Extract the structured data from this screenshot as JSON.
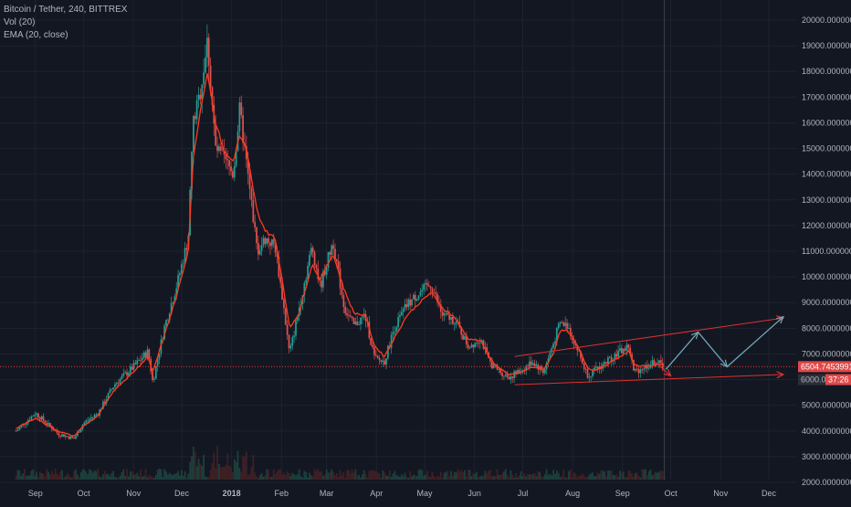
{
  "header": {
    "symbol_line": "Bitcoin / Tether, 240, BITTREX",
    "volume_line": "Vol (20)",
    "ema_line": "EMA (20, close)"
  },
  "colors": {
    "background": "#131722",
    "grid": "#1e2230",
    "axis_text": "#b2b5be",
    "candle_up": "#26a69a",
    "candle_down": "#ef5350",
    "ema": "#ff3b1f",
    "price_line": "#e04040",
    "price_tag": "#e04848",
    "channel": "#e03030",
    "projection": "#6fa8b8"
  },
  "chart_data": {
    "type": "line",
    "series": [
      {
        "name": "Bitcoin / Tether",
        "type": "price",
        "color": "#b2b5be"
      },
      {
        "name": "EMA (20, close)",
        "type": "ema",
        "color": "#ff3b1f"
      }
    ],
    "x": [
      "2017-08-20",
      "2017-09-01",
      "2017-09-15",
      "2017-09-25",
      "2017-10-01",
      "2017-10-10",
      "2017-10-20",
      "2017-11-01",
      "2017-11-10",
      "2017-11-13",
      "2017-11-20",
      "2017-11-28",
      "2017-12-05",
      "2017-12-08",
      "2017-12-12",
      "2017-12-17",
      "2017-12-22",
      "2017-12-28",
      "2018-01-02",
      "2018-01-06",
      "2018-01-10",
      "2018-01-17",
      "2018-01-22",
      "2018-01-28",
      "2018-02-02",
      "2018-02-06",
      "2018-02-12",
      "2018-02-20",
      "2018-02-25",
      "2018-03-05",
      "2018-03-12",
      "2018-03-18",
      "2018-03-25",
      "2018-03-31",
      "2018-04-06",
      "2018-04-12",
      "2018-04-20",
      "2018-04-28",
      "2018-05-05",
      "2018-05-12",
      "2018-05-20",
      "2018-05-28",
      "2018-06-05",
      "2018-06-10",
      "2018-06-15",
      "2018-06-22",
      "2018-06-29",
      "2018-07-07",
      "2018-07-14",
      "2018-07-20",
      "2018-07-24",
      "2018-07-29",
      "2018-08-05",
      "2018-08-10",
      "2018-08-14",
      "2018-08-20",
      "2018-08-28",
      "2018-09-05",
      "2018-09-08",
      "2018-09-15",
      "2018-09-22",
      "2018-09-27"
    ],
    "close": [
      4000,
      4700,
      3900,
      3700,
      4300,
      4700,
      5800,
      6500,
      7100,
      5900,
      8000,
      9700,
      11500,
      16000,
      17000,
      19200,
      15000,
      14500,
      14000,
      16500,
      14500,
      11000,
      11500,
      11200,
      9000,
      7000,
      8800,
      11200,
      9600,
      11400,
      8800,
      8100,
      8500,
      6800,
      6700,
      8000,
      8900,
      9400,
      9700,
      8500,
      8300,
      7300,
      7600,
      6700,
      6400,
      6100,
      6300,
      6700,
      6300,
      7400,
      8200,
      8100,
      7000,
      6200,
      6300,
      6600,
      7000,
      7300,
      6300,
      6500,
      6700,
      6500
    ],
    "ema_values": [
      4100,
      4500,
      4000,
      3800,
      4200,
      4600,
      5600,
      6300,
      6900,
      6300,
      7700,
      9300,
      11000,
      14500,
      16300,
      18000,
      16000,
      14800,
      14500,
      15500,
      15000,
      12500,
      11800,
      11500,
      9700,
      8000,
      8600,
      10500,
      9900,
      10900,
      9500,
      8600,
      8500,
      7300,
      6900,
      7600,
      8500,
      9000,
      9400,
      8800,
      8400,
      7600,
      7500,
      6900,
      6500,
      6200,
      6250,
      6500,
      6400,
      7000,
      7900,
      7900,
      7200,
      6500,
      6350,
      6500,
      6800,
      7100,
      6600,
      6500,
      6600,
      6550
    ],
    "ylim": [
      2000,
      20000
    ],
    "y_ticks": [
      "20000.00000000",
      "19000.00000000",
      "18000.00000000",
      "17000.00000000",
      "16000.00000000",
      "15000.00000000",
      "14000.00000000",
      "13000.00000000",
      "12000.00000000",
      "11000.00000000",
      "10000.00000000",
      "9000.00000000",
      "8000.00000000",
      "7000.00000000",
      "6000.00000000",
      "5000.00000000",
      "4000.00000000",
      "3000.00000000",
      "2000.00000000"
    ],
    "y_tick_values": [
      20000,
      19000,
      18000,
      17000,
      16000,
      15000,
      14000,
      13000,
      12000,
      11000,
      10000,
      9000,
      8000,
      7000,
      6000,
      5000,
      4000,
      3000,
      2000
    ],
    "x_ticks": [
      {
        "label": "Sep",
        "date": "2017-09-01"
      },
      {
        "label": "Oct",
        "date": "2017-10-01"
      },
      {
        "label": "Nov",
        "date": "2017-11-01"
      },
      {
        "label": "Dec",
        "date": "2017-12-01"
      },
      {
        "label": "2018",
        "date": "2018-01-01"
      },
      {
        "label": "Feb",
        "date": "2018-02-01"
      },
      {
        "label": "Mar",
        "date": "2018-03-01"
      },
      {
        "label": "Apr",
        "date": "2018-04-01"
      },
      {
        "label": "May",
        "date": "2018-05-01"
      },
      {
        "label": "Jun",
        "date": "2018-06-01"
      },
      {
        "label": "Jul",
        "date": "2018-07-01"
      },
      {
        "label": "Aug",
        "date": "2018-08-01"
      },
      {
        "label": "Sep",
        "date": "2018-09-01"
      },
      {
        "label": "Oct",
        "date": "2018-10-01"
      },
      {
        "label": "Nov",
        "date": "2018-11-01"
      },
      {
        "label": "Dec",
        "date": "2018-12-01"
      }
    ],
    "x_range": [
      "2017-08-10",
      "2018-12-18"
    ],
    "current_price": 6504.7453991,
    "current_price_label": "6504.74539910",
    "countdown_price_label": "6000.00",
    "countdown_label": "37:26",
    "grid": true,
    "channel_upper": [
      {
        "date": "2018-06-26",
        "value": 6900
      },
      {
        "date": "2018-12-10",
        "value": 8400
      }
    ],
    "channel_lower": [
      {
        "date": "2018-06-26",
        "value": 5800
      },
      {
        "date": "2018-12-10",
        "value": 6200
      }
    ],
    "short_arrow": [
      {
        "date": "2018-09-20",
        "value": 6750
      },
      {
        "date": "2018-10-01",
        "value": 6150
      }
    ],
    "projection_path": [
      {
        "date": "2018-09-28",
        "value": 6400
      },
      {
        "date": "2018-10-18",
        "value": 7850
      },
      {
        "date": "2018-11-05",
        "value": 6500
      },
      {
        "date": "2018-12-10",
        "value": 8450
      }
    ]
  }
}
